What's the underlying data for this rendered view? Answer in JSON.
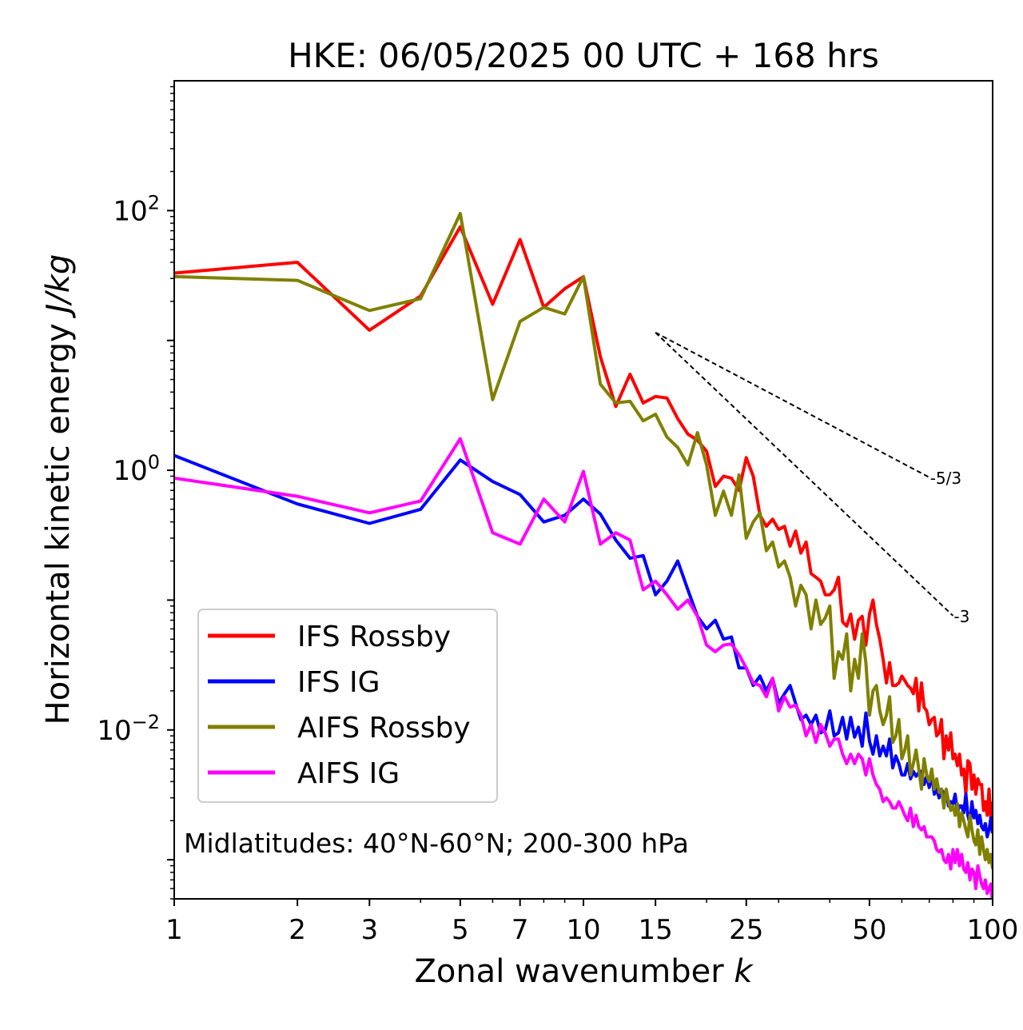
{
  "chart_data": {
    "type": "line",
    "title": "HKE: 06/05/2025 00 UTC + 168 hrs",
    "xlabel_text": "Zonal wavenumber",
    "xlabel_var": "k",
    "ylabel_text": "Horizontal kinetic energy",
    "ylabel_unit": "J/kg",
    "x_scale": "log",
    "y_scale": "log",
    "xlim": [
      1,
      100
    ],
    "ylim": [
      0.0005,
      1000
    ],
    "x_ticks": [
      1,
      2,
      3,
      5,
      7,
      10,
      15,
      25,
      50,
      100
    ],
    "x_tick_labels": [
      "1",
      "2",
      "3",
      "5",
      "7",
      "10",
      "15",
      "25",
      "50",
      "100"
    ],
    "y_ticks": [
      0.01,
      1,
      100
    ],
    "y_tick_labels": [
      {
        "base": "10",
        "exp": "−2"
      },
      {
        "base": "10",
        "exp": "0"
      },
      {
        "base": "10",
        "exp": "2"
      }
    ],
    "grid": false,
    "legend_position": "lower-left",
    "annotation": "Midlatitudes: 40°N-60°N; 200-300 hPa",
    "reference_lines": [
      {
        "label": "-5/3",
        "slope": -1.6667,
        "x_start": 15,
        "y_start": 11.5,
        "x_end": 70
      },
      {
        "label": "-3",
        "slope": -3,
        "x_start": 15,
        "y_start": 11.5,
        "x_end": 80
      }
    ],
    "series": [
      {
        "name": "IFS Rossby",
        "color": "#ff0000",
        "x": [
          1,
          2,
          3,
          4,
          5,
          6,
          7,
          8,
          9,
          10,
          11,
          12,
          13,
          14,
          15,
          16,
          17,
          18,
          19,
          20,
          21,
          22,
          23,
          24,
          25,
          26,
          27,
          28,
          29,
          30,
          31,
          32,
          33,
          34,
          35,
          36,
          37,
          38,
          39,
          40,
          41,
          42,
          43,
          44,
          45,
          46,
          47,
          48,
          49,
          50,
          51,
          52,
          53,
          54,
          55,
          56,
          57,
          58,
          59,
          60,
          61,
          62,
          63,
          64,
          65,
          66,
          67,
          68,
          69,
          70,
          71,
          72,
          73,
          74,
          75,
          76,
          77,
          78,
          79,
          80,
          81,
          82,
          83,
          84,
          85,
          86,
          87,
          88,
          89,
          90,
          91,
          92,
          93,
          94,
          95,
          96,
          97,
          98,
          99,
          100
        ],
        "y": [
          33,
          40,
          12,
          22,
          75,
          19,
          60,
          18,
          25,
          31,
          7.5,
          3.1,
          5.5,
          3.3,
          3.7,
          3.6,
          2.5,
          1.9,
          1.7,
          1.4,
          0.75,
          0.9,
          0.87,
          0.7,
          1.25,
          0.9,
          0.45,
          0.37,
          0.42,
          0.35,
          0.37,
          0.26,
          0.34,
          0.23,
          0.28,
          0.16,
          0.15,
          0.14,
          0.11,
          0.11,
          0.12,
          0.15,
          0.068,
          0.063,
          0.078,
          0.05,
          0.07,
          0.075,
          0.045,
          0.078,
          0.1,
          0.065,
          0.05,
          0.035,
          0.023,
          0.033,
          0.022,
          0.022,
          0.023,
          0.026,
          0.024,
          0.022,
          0.021,
          0.019,
          0.025,
          0.014,
          0.023,
          0.015,
          0.014,
          0.011,
          0.012,
          0.0125,
          0.009,
          0.0095,
          0.012,
          0.006,
          0.009,
          0.007,
          0.0095,
          0.006,
          0.0065,
          0.0053,
          0.0065,
          0.0045,
          0.005,
          0.0032,
          0.0058,
          0.0055,
          0.0035,
          0.0045,
          0.0032,
          0.0042,
          0.0038,
          0.0038,
          0.0024,
          0.0028,
          0.0022,
          0.0035,
          0.002,
          0.0028
        ]
      },
      {
        "name": "IFS IG",
        "color": "#0000ff",
        "x": [
          1,
          2,
          3,
          4,
          5,
          6,
          7,
          8,
          9,
          10,
          11,
          12,
          13,
          14,
          15,
          16,
          17,
          18,
          19,
          20,
          21,
          22,
          23,
          24,
          25,
          26,
          27,
          28,
          29,
          30,
          31,
          32,
          33,
          34,
          35,
          36,
          37,
          38,
          39,
          40,
          41,
          42,
          43,
          44,
          45,
          46,
          47,
          48,
          49,
          50,
          51,
          52,
          53,
          54,
          55,
          56,
          57,
          58,
          59,
          60,
          61,
          62,
          63,
          64,
          65,
          66,
          67,
          68,
          69,
          70,
          71,
          72,
          73,
          74,
          75,
          76,
          77,
          78,
          79,
          80,
          81,
          82,
          83,
          84,
          85,
          86,
          87,
          88,
          89,
          90,
          91,
          92,
          93,
          94,
          95,
          96,
          97,
          98,
          99,
          100
        ],
        "y": [
          1.3,
          0.55,
          0.39,
          0.5,
          1.2,
          0.82,
          0.65,
          0.4,
          0.45,
          0.6,
          0.46,
          0.29,
          0.21,
          0.22,
          0.11,
          0.14,
          0.2,
          0.12,
          0.075,
          0.06,
          0.07,
          0.05,
          0.052,
          0.03,
          0.03,
          0.022,
          0.026,
          0.02,
          0.025,
          0.016,
          0.019,
          0.022,
          0.016,
          0.012,
          0.013,
          0.011,
          0.013,
          0.0095,
          0.01,
          0.014,
          0.009,
          0.0095,
          0.0125,
          0.0085,
          0.0125,
          0.0088,
          0.0105,
          0.0075,
          0.0135,
          0.0082,
          0.0065,
          0.009,
          0.0063,
          0.0075,
          0.0063,
          0.0085,
          0.0051,
          0.0063,
          0.0055,
          0.0045,
          0.0045,
          0.0055,
          0.0042,
          0.0048,
          0.0044,
          0.0047,
          0.0048,
          0.0038,
          0.0044,
          0.0036,
          0.0045,
          0.0032,
          0.0035,
          0.003,
          0.0035,
          0.0032,
          0.0034,
          0.0026,
          0.0028,
          0.0027,
          0.0032,
          0.0023,
          0.0026,
          0.0026,
          0.0023,
          0.0032,
          0.0022,
          0.0019,
          0.0028,
          0.0021,
          0.0024,
          0.0019,
          0.0022,
          0.0018,
          0.0017,
          0.0019,
          0.0015,
          0.0017,
          0.0021,
          0.0016
        ]
      },
      {
        "name": "AIFS Rossby",
        "color": "#808000",
        "x": [
          1,
          2,
          3,
          4,
          5,
          6,
          7,
          8,
          9,
          10,
          11,
          12,
          13,
          14,
          15,
          16,
          17,
          18,
          19,
          20,
          21,
          22,
          23,
          24,
          25,
          26,
          27,
          28,
          29,
          30,
          31,
          32,
          33,
          34,
          35,
          36,
          37,
          38,
          39,
          40,
          41,
          42,
          43,
          44,
          45,
          46,
          47,
          48,
          49,
          50,
          51,
          52,
          53,
          54,
          55,
          56,
          57,
          58,
          59,
          60,
          61,
          62,
          63,
          64,
          65,
          66,
          67,
          68,
          69,
          70,
          71,
          72,
          73,
          74,
          75,
          76,
          77,
          78,
          79,
          80,
          81,
          82,
          83,
          84,
          85,
          86,
          87,
          88,
          89,
          90,
          91,
          92,
          93,
          94,
          95,
          96,
          97,
          98,
          99,
          100
        ],
        "y": [
          31,
          29,
          17,
          21,
          95,
          3.5,
          14,
          18,
          16,
          31,
          4.6,
          3.3,
          3.4,
          2.4,
          2.7,
          1.8,
          1.5,
          1.1,
          1.95,
          1.1,
          0.45,
          0.69,
          0.45,
          0.92,
          0.3,
          0.4,
          0.47,
          0.24,
          0.28,
          0.18,
          0.2,
          0.15,
          0.09,
          0.13,
          0.11,
          0.06,
          0.1,
          0.065,
          0.073,
          0.09,
          0.025,
          0.04,
          0.035,
          0.055,
          0.02,
          0.035,
          0.025,
          0.055,
          0.033,
          0.013,
          0.02,
          0.022,
          0.014,
          0.011,
          0.013,
          0.018,
          0.008,
          0.009,
          0.012,
          0.006,
          0.007,
          0.009,
          0.0045,
          0.0055,
          0.007,
          0.005,
          0.0035,
          0.006,
          0.0045,
          0.004,
          0.005,
          0.0035,
          0.0042,
          0.0033,
          0.0035,
          0.0025,
          0.0035,
          0.0028,
          0.0024,
          0.0026,
          0.0022,
          0.0027,
          0.0018,
          0.0023,
          0.002,
          0.0017,
          0.0015,
          0.0022,
          0.0017,
          0.0014,
          0.0013,
          0.0017,
          0.0011,
          0.0015,
          0.0012,
          0.001,
          0.0012,
          0.00095,
          0.0011,
          0.00085
        ]
      },
      {
        "name": "AIFS IG",
        "color": "#ff00ff",
        "x": [
          1,
          2,
          3,
          4,
          5,
          6,
          7,
          8,
          9,
          10,
          11,
          12,
          13,
          14,
          15,
          16,
          17,
          18,
          19,
          20,
          21,
          22,
          23,
          24,
          25,
          26,
          27,
          28,
          29,
          30,
          31,
          32,
          33,
          34,
          35,
          36,
          37,
          38,
          39,
          40,
          41,
          42,
          43,
          44,
          45,
          46,
          47,
          48,
          49,
          50,
          51,
          52,
          53,
          54,
          55,
          56,
          57,
          58,
          59,
          60,
          61,
          62,
          63,
          64,
          65,
          66,
          67,
          68,
          69,
          70,
          71,
          72,
          73,
          74,
          75,
          76,
          77,
          78,
          79,
          80,
          81,
          82,
          83,
          84,
          85,
          86,
          87,
          88,
          89,
          90,
          91,
          92,
          93,
          94,
          95,
          96,
          97,
          98,
          99,
          100
        ],
        "y": [
          0.87,
          0.63,
          0.47,
          0.58,
          1.75,
          0.33,
          0.27,
          0.6,
          0.4,
          0.98,
          0.27,
          0.33,
          0.29,
          0.12,
          0.14,
          0.11,
          0.085,
          0.1,
          0.075,
          0.045,
          0.04,
          0.045,
          0.046,
          0.038,
          0.03,
          0.023,
          0.022,
          0.018,
          0.025,
          0.014,
          0.018,
          0.015,
          0.0155,
          0.013,
          0.009,
          0.011,
          0.008,
          0.011,
          0.0095,
          0.0075,
          0.0085,
          0.0085,
          0.0065,
          0.0055,
          0.0065,
          0.0055,
          0.0065,
          0.006,
          0.0045,
          0.006,
          0.0045,
          0.0038,
          0.0035,
          0.0028,
          0.003,
          0.0028,
          0.0025,
          0.0025,
          0.0028,
          0.0025,
          0.0022,
          0.002,
          0.0025,
          0.0018,
          0.0022,
          0.0018,
          0.0017,
          0.0018,
          0.0015,
          0.0015,
          0.0015,
          0.0014,
          0.0012,
          0.00115,
          0.0012,
          0.001,
          0.00095,
          0.0011,
          0.00085,
          0.0012,
          0.00095,
          0.0012,
          0.0009,
          0.0011,
          0.00085,
          0.0008,
          0.00095,
          0.0007,
          0.00085,
          0.0008,
          0.0006,
          0.0009,
          0.00075,
          0.00065,
          0.0006,
          0.0007,
          0.00055,
          0.0006,
          0.00065,
          0.00045
        ]
      }
    ]
  }
}
